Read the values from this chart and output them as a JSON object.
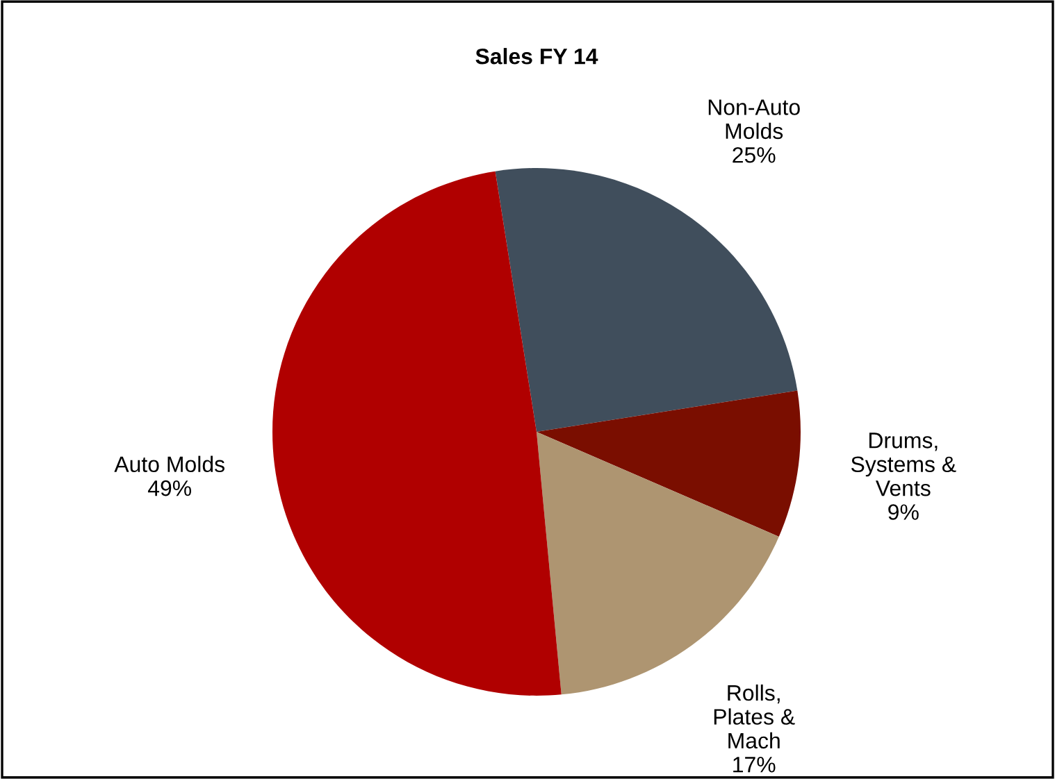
{
  "chart_data": {
    "type": "pie",
    "title": "Sales FY 14",
    "categories": [
      "Non-Auto\nMolds",
      "Drums,\nSystems &\nVents",
      "Rolls,\nPlates &\nMach",
      "Auto Molds"
    ],
    "values": [
      25,
      9,
      17,
      49
    ],
    "value_labels": [
      "25%",
      "9%",
      "17%",
      "49%"
    ],
    "colors": [
      "#404e5c",
      "#7a0e00",
      "#ae9571",
      "#b00000"
    ],
    "legend": false
  }
}
